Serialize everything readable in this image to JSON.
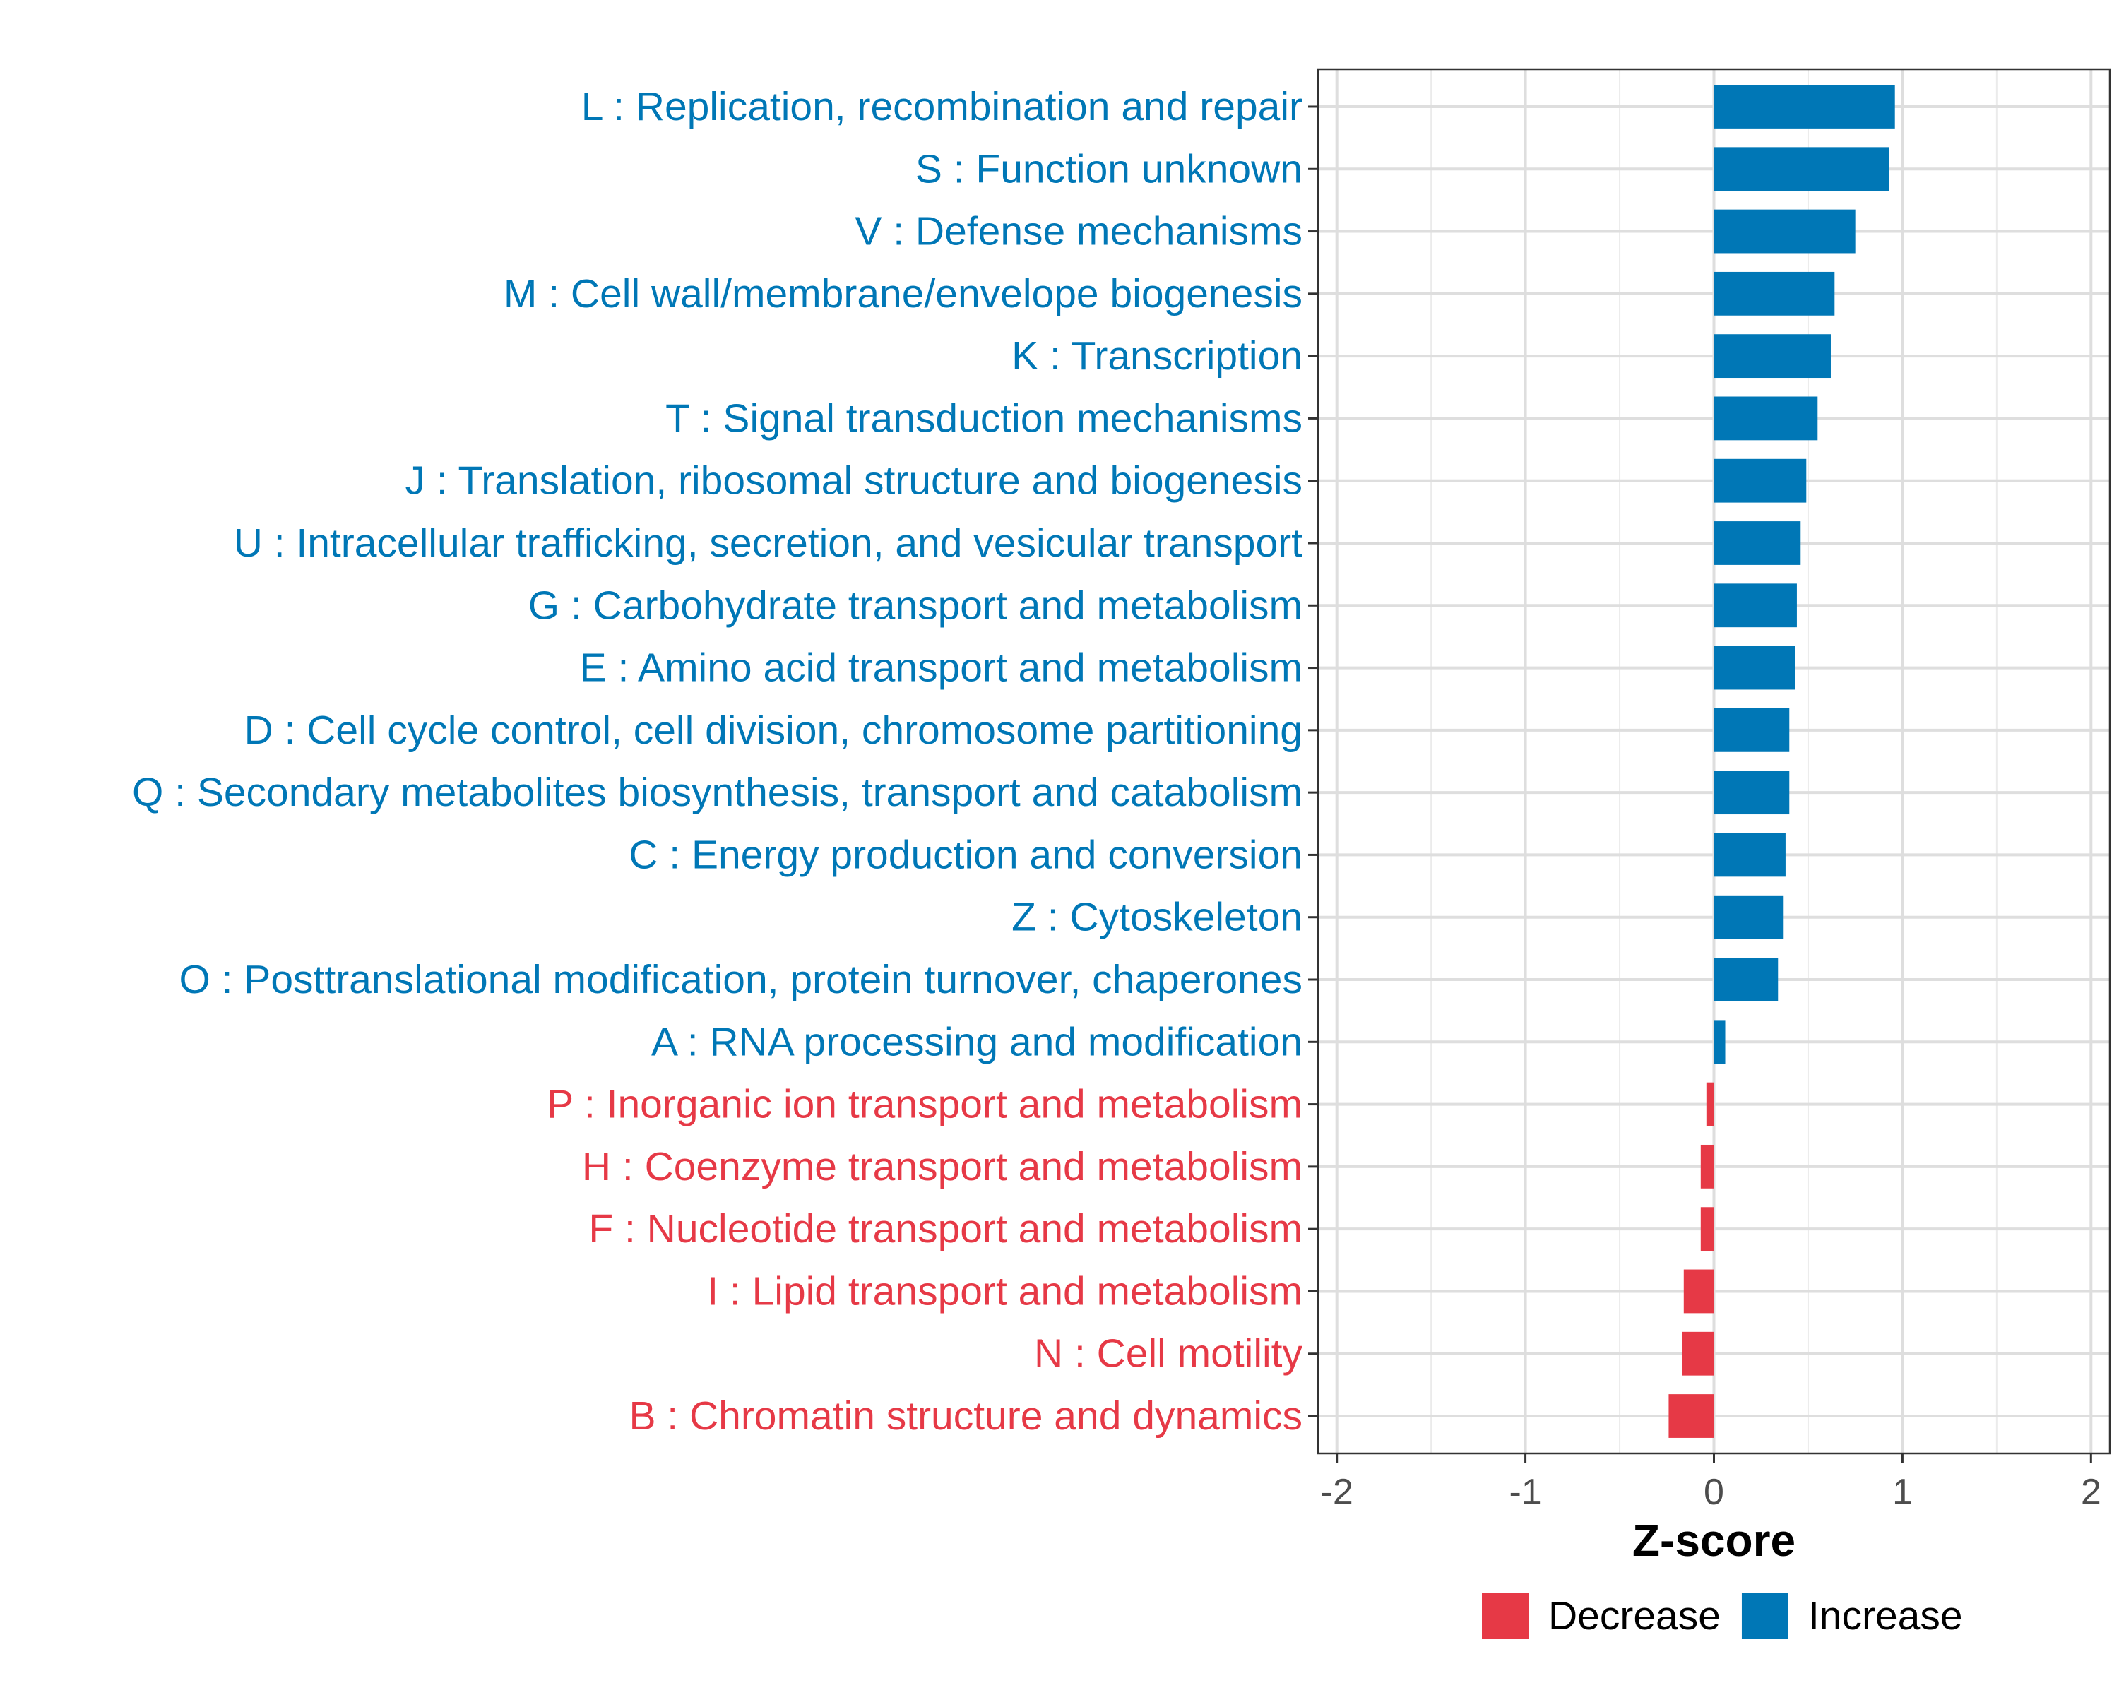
{
  "chart_data": {
    "type": "bar",
    "orientation": "horizontal",
    "xlabel": "Z-score",
    "ylabel": "",
    "xlim": [
      -2.1,
      2.1
    ],
    "xticks": [
      -2,
      -1,
      0,
      1,
      2
    ],
    "xtick_labels": [
      "-2",
      "-1",
      "0",
      "1",
      "2"
    ],
    "grid": true,
    "legend_position": "bottom",
    "legend": [
      {
        "name": "Decrease",
        "color": "#E63946"
      },
      {
        "name": "Increase",
        "color": "#0077B6"
      }
    ],
    "categories": [
      "L : Replication, recombination and repair",
      "S : Function unknown",
      "V : Defense mechanisms",
      "M : Cell wall/membrane/envelope biogenesis",
      "K : Transcription",
      "T : Signal transduction mechanisms",
      "J : Translation, ribosomal structure and biogenesis",
      "U : Intracellular trafficking, secretion, and vesicular transport",
      "G : Carbohydrate transport and metabolism",
      "E : Amino acid transport and metabolism",
      "D : Cell cycle control, cell division, chromosome partitioning",
      "Q : Secondary metabolites biosynthesis, transport and catabolism",
      "C : Energy production and conversion",
      "Z : Cytoskeleton",
      "O : Posttranslational modification, protein turnover, chaperones",
      "A : RNA processing and modification",
      "P : Inorganic ion transport and metabolism",
      "H : Coenzyme transport and metabolism",
      "F : Nucleotide transport and metabolism",
      "I : Lipid transport and metabolism",
      "N : Cell motility",
      "B : Chromatin structure and dynamics"
    ],
    "values": [
      0.96,
      0.93,
      0.75,
      0.64,
      0.62,
      0.55,
      0.49,
      0.46,
      0.44,
      0.43,
      0.4,
      0.4,
      0.38,
      0.37,
      0.34,
      0.06,
      -0.04,
      -0.07,
      -0.07,
      -0.16,
      -0.17,
      -0.24
    ],
    "groups": [
      "Increase",
      "Increase",
      "Increase",
      "Increase",
      "Increase",
      "Increase",
      "Increase",
      "Increase",
      "Increase",
      "Increase",
      "Increase",
      "Increase",
      "Increase",
      "Increase",
      "Increase",
      "Increase",
      "Decrease",
      "Decrease",
      "Decrease",
      "Decrease",
      "Decrease",
      "Decrease"
    ]
  }
}
